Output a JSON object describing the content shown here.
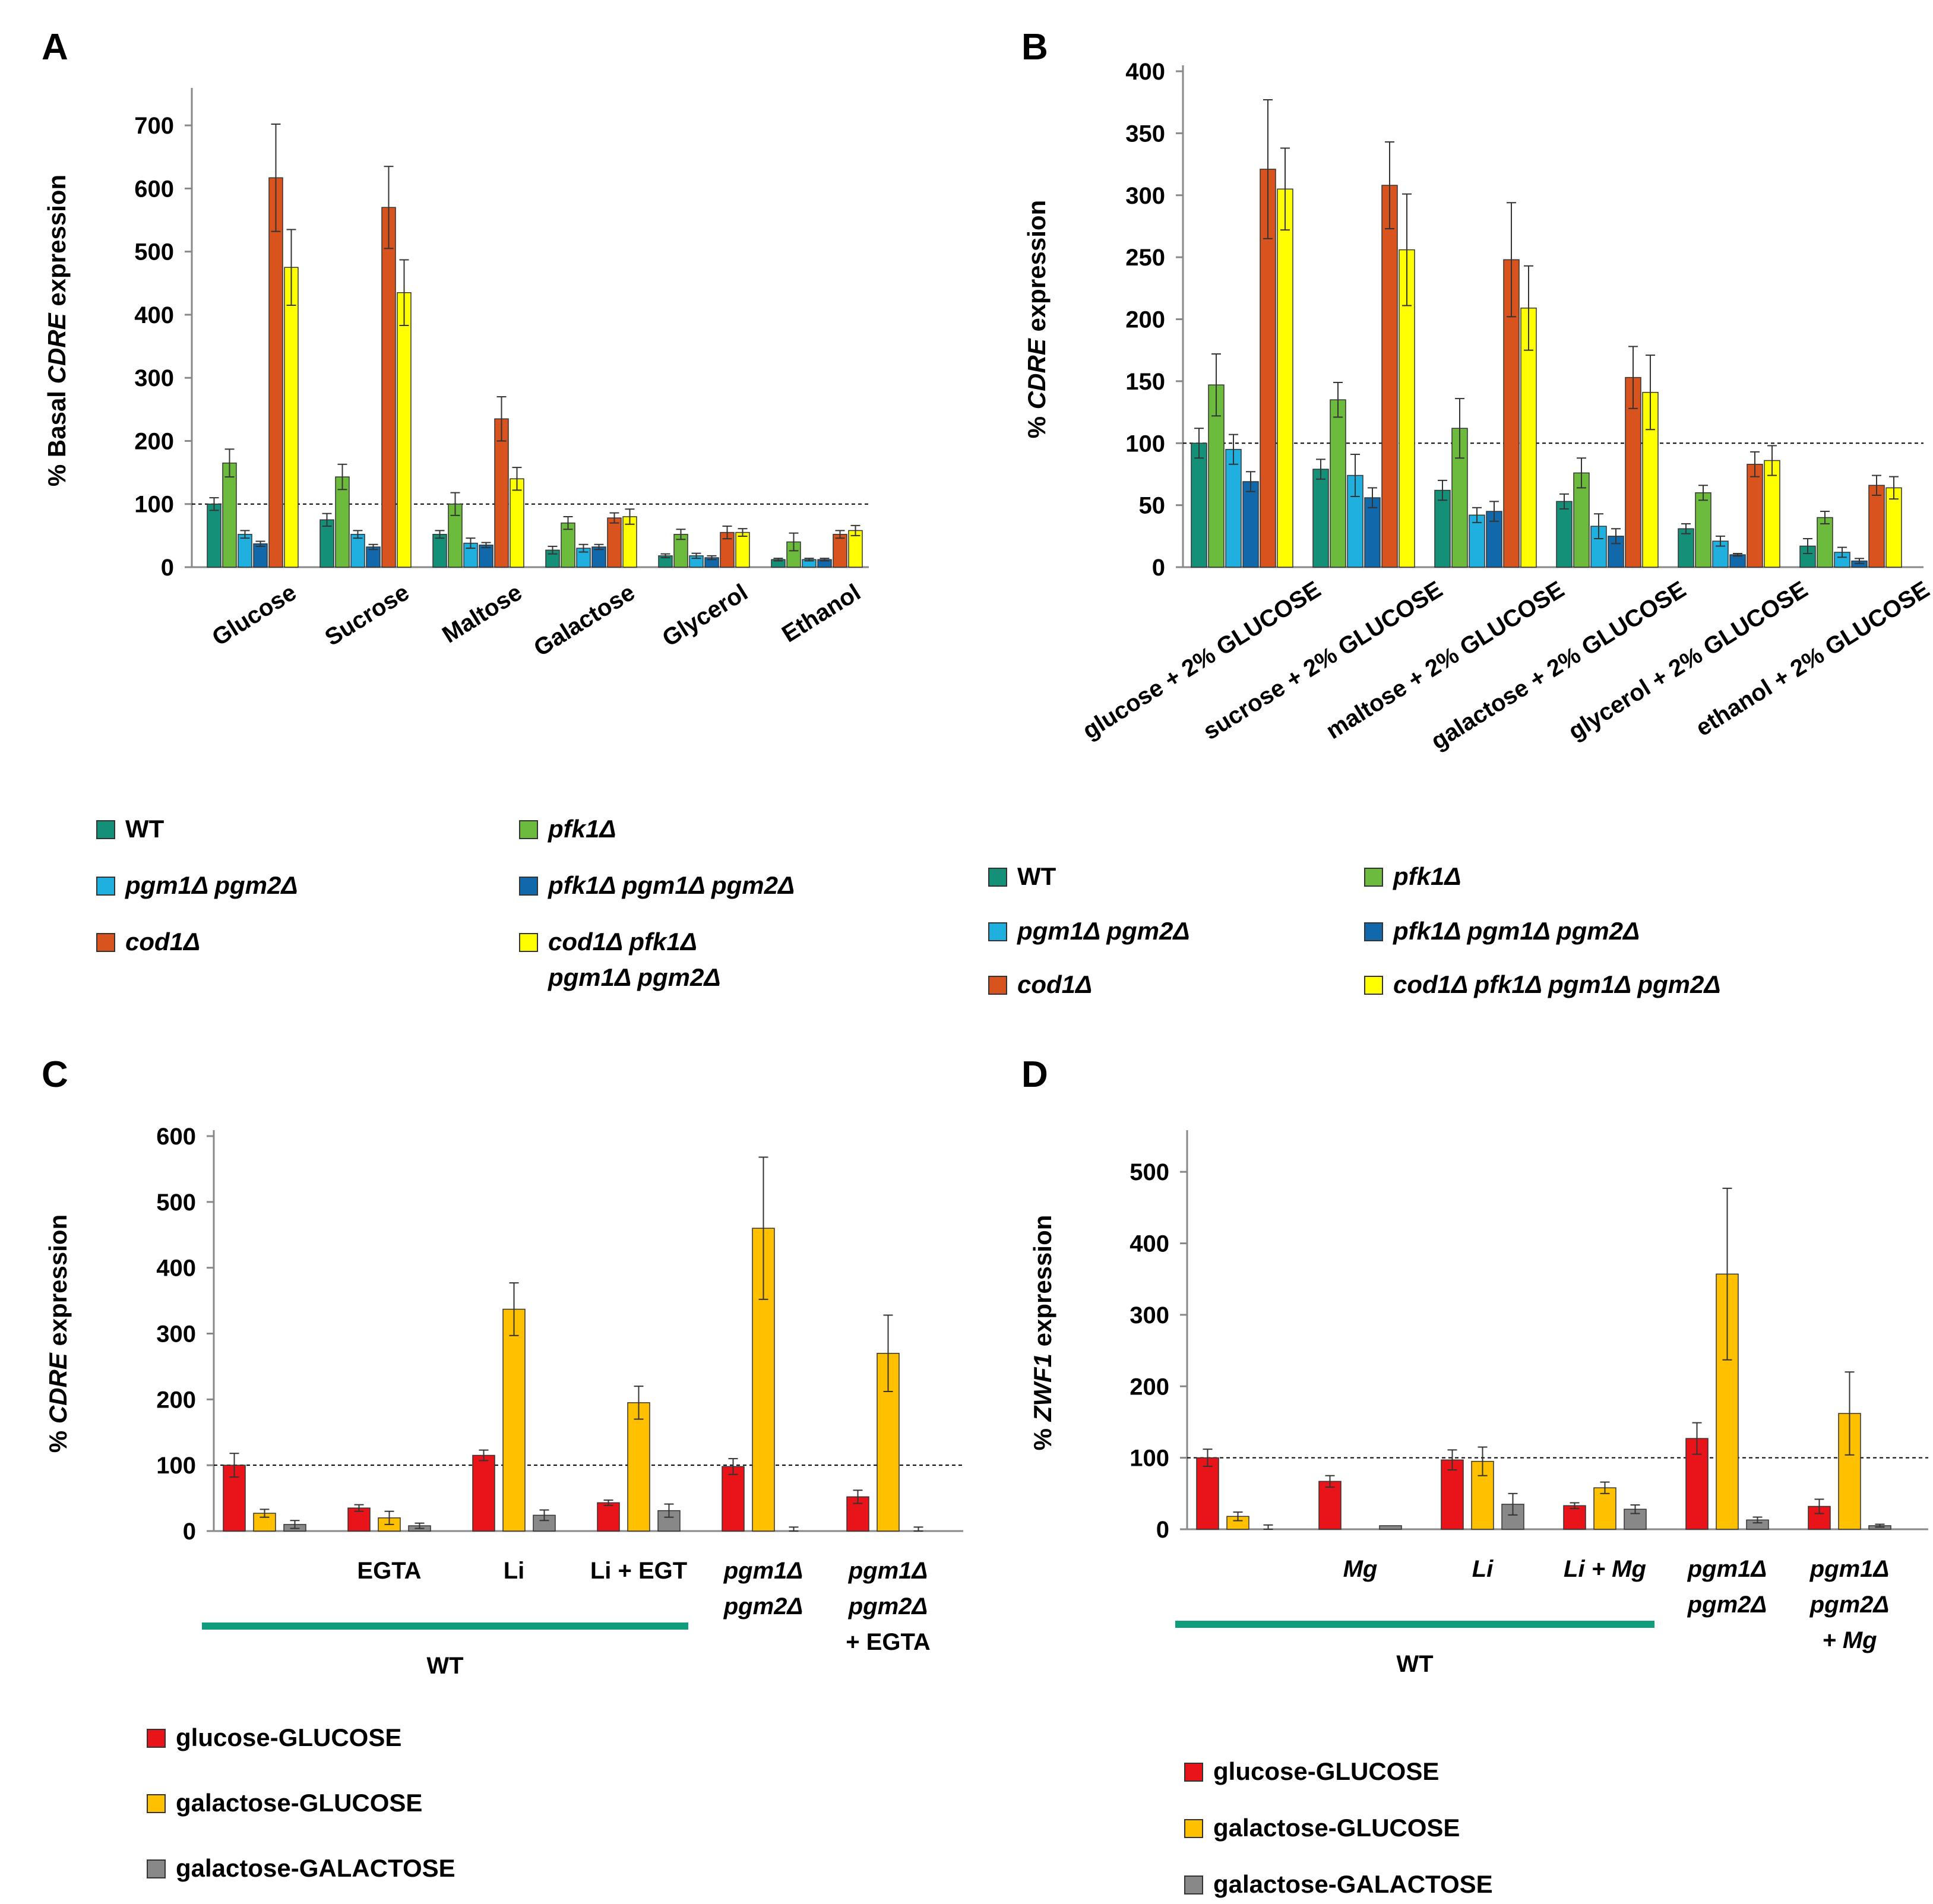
{
  "colors": {
    "WT": "#149078",
    "pfk1": "#6CBB3C",
    "pgm": "#20B0E0",
    "pfkpgm": "#1168AA",
    "cod1": "#D9531E",
    "codall": "#FFFF00",
    "glucoseGLUCOSE": "#E8141A",
    "galactoseGLUCOSE": "#FFC000",
    "galactoseGALACTOSE": "#888888",
    "wtline": "#129C7E"
  },
  "chart_data": [
    {
      "id": "A",
      "panel": "A",
      "type": "bar",
      "ylabel": [
        "% Basal ",
        "CDRE",
        " expression"
      ],
      "ylim": [
        0,
        750
      ],
      "yticks": [
        0,
        100,
        200,
        300,
        400,
        500,
        600,
        700
      ],
      "reference_line": 100,
      "categories": [
        "Glucose",
        "Sucrose",
        "Maltose",
        "Galactose",
        "Glycerol",
        "Ethanol"
      ],
      "series": [
        {
          "key": "WT",
          "values": [
            100,
            75,
            52,
            27,
            18,
            12
          ],
          "errors": [
            10,
            10,
            6,
            6,
            3,
            2
          ]
        },
        {
          "key": "pfk1",
          "values": [
            165,
            143,
            100,
            70,
            52,
            40
          ],
          "errors": [
            22,
            20,
            18,
            10,
            8,
            14
          ]
        },
        {
          "key": "pgm",
          "values": [
            52,
            52,
            38,
            30,
            18,
            12
          ],
          "errors": [
            6,
            6,
            8,
            6,
            4,
            2
          ]
        },
        {
          "key": "pfkpgm",
          "values": [
            37,
            32,
            35,
            32,
            15,
            12
          ],
          "errors": [
            4,
            4,
            4,
            4,
            3,
            2
          ]
        },
        {
          "key": "cod1",
          "values": [
            617,
            570,
            235,
            78,
            55,
            52
          ],
          "errors": [
            85,
            65,
            35,
            8,
            10,
            6
          ]
        },
        {
          "key": "codall",
          "values": [
            475,
            435,
            140,
            80,
            55,
            58
          ],
          "errors": [
            60,
            52,
            18,
            12,
            6,
            8
          ]
        }
      ],
      "legend": [
        {
          "key": "WT",
          "label": "WT"
        },
        {
          "key": "pfk1",
          "label": "pfk1Δ"
        },
        {
          "key": "pgm",
          "label": "pgm1Δ pgm2Δ"
        },
        {
          "key": "pfkpgm",
          "label": "pfk1Δ pgm1Δ pgm2Δ"
        },
        {
          "key": "cod1",
          "label": "cod1Δ"
        },
        {
          "key": "codall",
          "label": "cod1Δ pfk1Δ",
          "label2": "pgm1Δ pgm2Δ"
        }
      ]
    },
    {
      "id": "B",
      "panel": "B",
      "type": "bar",
      "ylabel": [
        "% ",
        "CDRE",
        " expression"
      ],
      "ylim": [
        0,
        400
      ],
      "yticks": [
        0,
        50,
        100,
        150,
        200,
        250,
        300,
        350,
        400
      ],
      "reference_line": 100,
      "categories": [
        "glucose + 2% GLUCOSE",
        "sucrose + 2% GLUCOSE",
        "maltose + 2% GLUCOSE",
        "galactose + 2% GLUCOSE",
        "glycerol + 2% GLUCOSE",
        "ethanol + 2% GLUCOSE"
      ],
      "series": [
        {
          "key": "WT",
          "values": [
            100,
            79,
            62,
            53,
            31,
            17
          ],
          "errors": [
            12,
            8,
            8,
            6,
            4,
            6
          ]
        },
        {
          "key": "pfk1",
          "values": [
            147,
            135,
            112,
            76,
            60,
            40
          ],
          "errors": [
            25,
            14,
            24,
            12,
            6,
            5
          ]
        },
        {
          "key": "pgm",
          "values": [
            95,
            74,
            42,
            33,
            21,
            12
          ],
          "errors": [
            12,
            17,
            6,
            10,
            4,
            4
          ]
        },
        {
          "key": "pfkpgm",
          "values": [
            69,
            56,
            45,
            25,
            10,
            5
          ],
          "errors": [
            8,
            8,
            8,
            6,
            1,
            2
          ]
        },
        {
          "key": "cod1",
          "values": [
            321,
            308,
            248,
            153,
            83,
            66
          ],
          "errors": [
            56,
            35,
            46,
            25,
            10,
            8
          ]
        },
        {
          "key": "codall",
          "values": [
            305,
            256,
            209,
            141,
            86,
            64
          ],
          "errors": [
            33,
            45,
            34,
            30,
            12,
            9
          ]
        }
      ],
      "legend": [
        {
          "key": "WT",
          "label": "WT"
        },
        {
          "key": "pfk1",
          "label": "pfk1Δ"
        },
        {
          "key": "pgm",
          "label": "pgm1Δ pgm2Δ"
        },
        {
          "key": "pfkpgm",
          "label": "pfk1Δ pgm1Δ pgm2Δ"
        },
        {
          "key": "cod1",
          "label": "cod1Δ"
        },
        {
          "key": "codall",
          "label": "cod1Δ pfk1Δ pgm1Δ pgm2Δ"
        }
      ]
    },
    {
      "id": "C",
      "panel": "C",
      "type": "bar",
      "ylabel": [
        "% ",
        "CDRE",
        " expression"
      ],
      "ylim": [
        0,
        600
      ],
      "yticks": [
        0,
        100,
        200,
        300,
        400,
        500,
        600
      ],
      "reference_line": 100,
      "categories": [
        [
          "",
          ""
        ],
        [
          "EGTA"
        ],
        [
          "Li"
        ],
        [
          "Li + EGT"
        ],
        [
          "pgm1Δ",
          "pgm2Δ"
        ],
        [
          "pgm1Δ",
          "pgm2Δ",
          "+ EGTA"
        ]
      ],
      "wt_label": "WT",
      "series": [
        {
          "key": "glucoseGLUCOSE",
          "values": [
            100,
            35,
            115,
            43,
            98,
            52
          ],
          "errors": [
            18,
            5,
            8,
            4,
            12,
            10
          ]
        },
        {
          "key": "galactoseGLUCOSE",
          "values": [
            27,
            20,
            337,
            195,
            460,
            270
          ],
          "errors": [
            6,
            10,
            40,
            25,
            108,
            58
          ]
        },
        {
          "key": "galactoseGALACTOSE",
          "values": [
            10,
            8,
            24,
            31,
            0,
            0
          ],
          "errors": [
            6,
            4,
            8,
            10,
            6,
            6
          ]
        }
      ],
      "legend": [
        {
          "key": "glucoseGLUCOSE",
          "label": "glucose-GLUCOSE"
        },
        {
          "key": "galactoseGLUCOSE",
          "label": "galactose-GLUCOSE"
        },
        {
          "key": "galactoseGALACTOSE",
          "label": "galactose-GALACTOSE"
        }
      ]
    },
    {
      "id": "D",
      "panel": "D",
      "type": "bar",
      "ylabel": [
        "% ",
        "ZWF1",
        " expression"
      ],
      "ylim": [
        0,
        550
      ],
      "yticks": [
        0,
        100,
        200,
        300,
        400,
        500
      ],
      "reference_line": 100,
      "categories": [
        [
          "",
          ""
        ],
        [
          "Mg"
        ],
        [
          "Li"
        ],
        [
          "Li + Mg"
        ],
        [
          "pgm1Δ",
          "pgm2Δ"
        ],
        [
          "pgm1Δ",
          "pgm2Δ",
          "+ Mg"
        ]
      ],
      "wt_label": "WT",
      "series": [
        {
          "key": "glucoseGLUCOSE",
          "values": [
            100,
            67,
            97,
            33,
            127,
            32
          ],
          "errors": [
            12,
            8,
            14,
            4,
            22,
            10
          ]
        },
        {
          "key": "galactoseGLUCOSE",
          "values": [
            18,
            0,
            95,
            58,
            357,
            162
          ],
          "errors": [
            6,
            0,
            20,
            8,
            120,
            58
          ]
        },
        {
          "key": "galactoseGALACTOSE",
          "values": [
            0,
            5,
            35,
            28,
            13,
            5
          ],
          "errors": [
            6,
            0,
            15,
            6,
            4,
            2
          ]
        }
      ],
      "legend": [
        {
          "key": "glucoseGLUCOSE",
          "label": "glucose-GLUCOSE"
        },
        {
          "key": "galactoseGLUCOSE",
          "label": "galactose-GLUCOSE"
        },
        {
          "key": "galactoseGALACTOSE",
          "label": "galactose-GALACTOSE"
        }
      ]
    }
  ]
}
